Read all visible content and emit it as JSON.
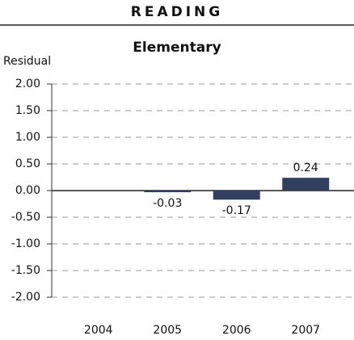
{
  "chart_data": {
    "type": "bar",
    "title": "READING",
    "subtitle": "Elementary",
    "ylabel": "Residual",
    "categories": [
      "2004",
      "2005",
      "2006",
      "2007"
    ],
    "values": [
      null,
      -0.03,
      -0.17,
      0.24
    ],
    "color": "#323f5f",
    "ylim": [
      -2,
      2
    ],
    "yticks": [
      {
        "value": 2,
        "label": "2.00"
      },
      {
        "value": 1.5,
        "label": "1.50"
      },
      {
        "value": 1,
        "label": "1.00"
      },
      {
        "value": 0.5,
        "label": "0.50"
      },
      {
        "value": 0,
        "label": "0.00"
      },
      {
        "value": -0.5,
        "label": "-0.50"
      },
      {
        "value": -1,
        "label": "-1.00"
      },
      {
        "value": -1.5,
        "label": "-1.50"
      },
      {
        "value": -2,
        "label": "-2.00"
      }
    ],
    "grid": true
  }
}
